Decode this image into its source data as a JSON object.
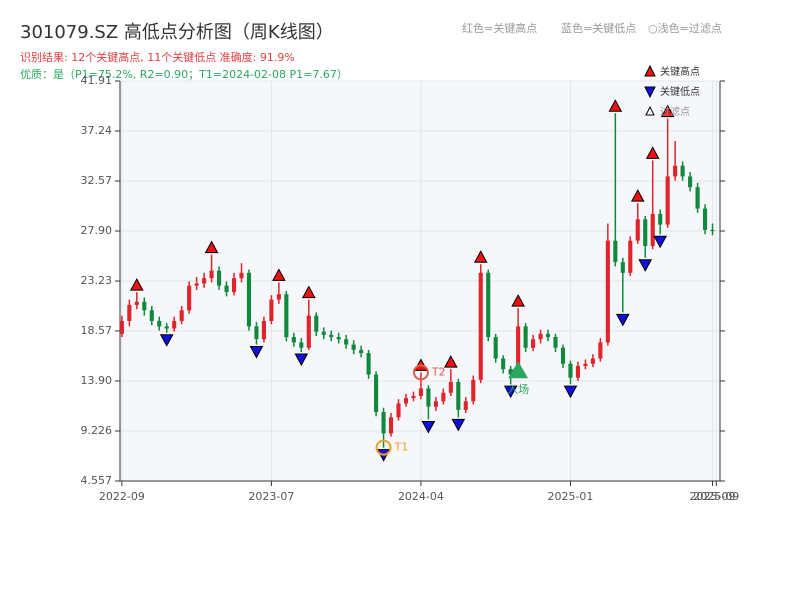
{
  "chart_data": {
    "type": "candlestick",
    "title": "301079.SZ 高低点分析图（周K线图）",
    "subtitle": "识别结果: 12个关键高点, 11个关键低点  准确度: 91.9%",
    "subtitle2": "优质：是（P1=75.2%, R2=0.90；T1=2024-02-08 P1=7.67）",
    "header_legend": [
      "红色=关键高点",
      "蓝色=关键低点",
      "○浅色=过滤点"
    ],
    "up_color": "#e0242a",
    "down_color": "#0f8a3c",
    "xlim": [
      -0.5,
      160
    ],
    "xticks": [
      {
        "value": 0,
        "label": "2022-09"
      },
      {
        "value": 40,
        "label": "2023-07"
      },
      {
        "value": 80,
        "label": "2024-04"
      },
      {
        "value": 120,
        "label": "2025-01"
      },
      {
        "value": 158,
        "label": "2025-09"
      },
      {
        "value": 159,
        "label": "2025-09"
      }
    ],
    "ylim": [
      4.557,
      41.91
    ],
    "yticks": [
      4.557,
      9.226,
      {
        "value": 13.9,
        "label": "13.90"
      },
      18.57,
      23.23,
      {
        "value": 27.9,
        "label": "27.90"
      },
      32.57,
      37.24,
      41.91
    ],
    "grid": true,
    "x": [
      0,
      2,
      4,
      6,
      8,
      10,
      12,
      14,
      16,
      18,
      20,
      22,
      24,
      26,
      28,
      30,
      32,
      34,
      36,
      38,
      40,
      42,
      44,
      46,
      48,
      50,
      52,
      54,
      56,
      58,
      60,
      62,
      64,
      66,
      68,
      70,
      72,
      74,
      76,
      78,
      80,
      82,
      84,
      86,
      88,
      90,
      92,
      94,
      96,
      98,
      100,
      102,
      104,
      106,
      108,
      110,
      112,
      114,
      116,
      118,
      120,
      122,
      124,
      126,
      128,
      130,
      132,
      134,
      136,
      138,
      140,
      142,
      144,
      146,
      148,
      150,
      152,
      154,
      156,
      158
    ],
    "open": [
      18.3,
      19.5,
      21.0,
      21.3,
      20.5,
      19.5,
      19.0,
      18.8,
      19.5,
      20.5,
      22.8,
      23.0,
      23.5,
      24.2,
      22.8,
      22.2,
      23.5,
      24.0,
      19.0,
      17.8,
      19.5,
      21.5,
      22.0,
      18.0,
      17.5,
      17.0,
      20.0,
      18.5,
      18.2,
      18.0,
      17.8,
      17.3,
      16.8,
      16.5,
      14.5,
      11.0,
      9.0,
      10.5,
      11.8,
      12.3,
      12.5,
      13.2,
      11.5,
      12.0,
      12.8,
      13.8,
      11.2,
      12.0,
      14.0,
      24.0,
      18.0,
      16.0,
      15.0,
      14.5,
      19.0,
      17.0,
      17.8,
      18.3,
      18.0,
      17.0,
      15.5,
      14.2,
      15.3,
      15.5,
      16.0,
      17.5,
      27.0,
      25.0,
      24.0,
      27.0,
      29.0,
      26.5,
      29.5,
      28.5,
      33.0,
      34.0,
      33.0,
      32.0,
      30.0,
      28.0
    ],
    "high": [
      20.0,
      21.5,
      22.2,
      21.7,
      20.9,
      19.9,
      19.3,
      19.9,
      20.9,
      23.2,
      23.6,
      24.0,
      25.7,
      24.6,
      23.2,
      24.0,
      24.9,
      24.3,
      19.4,
      19.9,
      21.9,
      23.1,
      22.3,
      18.4,
      17.9,
      21.5,
      20.3,
      18.9,
      18.6,
      18.4,
      18.2,
      17.7,
      17.2,
      16.8,
      14.8,
      11.4,
      10.9,
      12.2,
      12.7,
      12.9,
      14.7,
      13.5,
      12.4,
      13.2,
      15.0,
      14.1,
      12.4,
      14.4,
      24.8,
      24.3,
      18.3,
      16.3,
      15.3,
      20.7,
      19.3,
      18.2,
      18.7,
      18.7,
      18.3,
      17.3,
      15.8,
      15.7,
      15.9,
      16.4,
      17.9,
      28.6,
      38.9,
      25.4,
      27.4,
      30.5,
      29.3,
      34.5,
      29.9,
      38.4,
      36.3,
      34.4,
      33.4,
      32.4,
      30.4,
      28.6
    ],
    "low": [
      18.0,
      19.0,
      20.6,
      20.0,
      19.1,
      18.6,
      18.4,
      18.5,
      19.2,
      20.2,
      22.4,
      22.6,
      23.1,
      22.4,
      21.8,
      21.9,
      23.1,
      18.6,
      17.3,
      17.5,
      19.2,
      21.1,
      17.6,
      17.1,
      16.6,
      16.8,
      18.1,
      17.8,
      17.6,
      17.4,
      16.9,
      16.4,
      16.1,
      14.1,
      10.6,
      7.67,
      8.7,
      10.2,
      11.5,
      12.0,
      12.2,
      10.3,
      11.1,
      11.7,
      12.5,
      10.5,
      10.9,
      11.7,
      13.7,
      17.6,
      15.6,
      14.6,
      13.6,
      14.2,
      16.6,
      16.7,
      17.4,
      17.6,
      16.6,
      15.1,
      13.6,
      13.9,
      15.0,
      15.2,
      15.7,
      17.2,
      24.6,
      20.3,
      23.7,
      26.7,
      25.4,
      26.2,
      27.6,
      28.2,
      32.6,
      32.6,
      31.6,
      29.6,
      27.6,
      27.5
    ],
    "close": [
      19.5,
      21.0,
      21.3,
      20.5,
      19.5,
      19.0,
      18.8,
      19.5,
      20.5,
      22.8,
      23.0,
      23.5,
      24.2,
      22.8,
      22.2,
      23.5,
      24.0,
      19.0,
      17.8,
      19.5,
      21.5,
      22.0,
      18.0,
      17.5,
      17.0,
      20.0,
      18.5,
      18.2,
      18.0,
      17.8,
      17.3,
      16.8,
      16.5,
      14.5,
      11.0,
      9.0,
      10.5,
      11.8,
      12.3,
      12.5,
      13.2,
      11.5,
      12.0,
      12.8,
      13.8,
      11.2,
      12.0,
      14.0,
      24.0,
      18.0,
      16.0,
      15.0,
      14.5,
      19.0,
      17.0,
      17.8,
      18.3,
      18.0,
      17.0,
      15.5,
      14.2,
      15.3,
      15.5,
      16.0,
      17.5,
      27.0,
      25.0,
      24.0,
      27.0,
      29.0,
      26.5,
      29.5,
      28.5,
      33.0,
      34.0,
      33.0,
      32.0,
      30.0,
      28.0,
      27.9
    ],
    "key_highs": {
      "name": "关键高点",
      "color": "#ee1111",
      "x": [
        4,
        24,
        42,
        50,
        80,
        88,
        96,
        106,
        132,
        138,
        142,
        146
      ],
      "values": [
        22.2,
        25.7,
        23.1,
        21.5,
        14.7,
        15.0,
        24.8,
        20.7,
        38.9,
        30.5,
        34.5,
        38.4
      ]
    },
    "key_lows": {
      "name": "关键低点",
      "color": "#1111dd",
      "x": [
        12,
        36,
        48,
        70,
        82,
        90,
        104,
        120,
        134,
        140,
        144
      ],
      "values": [
        18.4,
        17.3,
        16.6,
        7.67,
        10.3,
        10.5,
        13.6,
        13.6,
        20.3,
        25.4,
        27.6
      ]
    },
    "filtered": {
      "name": "过滤点"
    },
    "t1": {
      "label": "T1",
      "x": 70,
      "value": 7.67,
      "color": "#f0a020"
    },
    "t2": {
      "label": "T2",
      "x": 80,
      "value": 14.7,
      "color": "#e06050"
    },
    "entry": {
      "label": "入场",
      "x": 106,
      "value": 14.9,
      "color": "#2aa860"
    }
  }
}
